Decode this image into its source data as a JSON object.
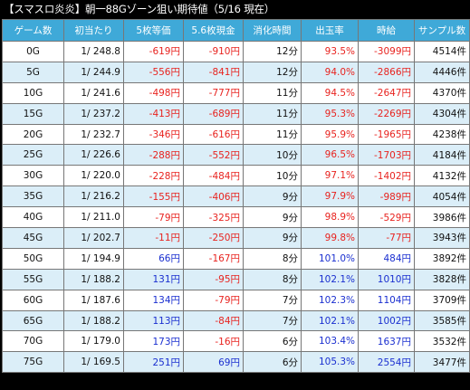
{
  "title": "【スマスロ炎炎】朝一88Gゾーン狙い期待値（5/16 現在）",
  "headers": [
    "ゲーム数",
    "初当たり",
    "5枚等価",
    "5.6枚現金",
    "消化時間",
    "出玉率",
    "時給",
    "サンプル数"
  ],
  "rows": [
    [
      "0G",
      "1/ 248.8",
      "-619円",
      "-910円",
      "12分",
      "93.5%",
      "-3099円",
      "4514件"
    ],
    [
      "5G",
      "1/ 244.9",
      "-556円",
      "-841円",
      "12分",
      "94.0%",
      "-2866円",
      "4446件"
    ],
    [
      "10G",
      "1/ 241.6",
      "-498円",
      "-777円",
      "11分",
      "94.5%",
      "-2647円",
      "4370件"
    ],
    [
      "15G",
      "1/ 237.2",
      "-413円",
      "-689円",
      "11分",
      "95.3%",
      "-2269円",
      "4304件"
    ],
    [
      "20G",
      "1/ 232.7",
      "-346円",
      "-616円",
      "11分",
      "95.9%",
      "-1965円",
      "4238件"
    ],
    [
      "25G",
      "1/ 226.6",
      "-288円",
      "-552円",
      "10分",
      "96.5%",
      "-1703円",
      "4184件"
    ],
    [
      "30G",
      "1/ 220.0",
      "-228円",
      "-484円",
      "10分",
      "97.1%",
      "-1402円",
      "4132件"
    ],
    [
      "35G",
      "1/ 216.2",
      "-155円",
      "-406円",
      "9分",
      "97.9%",
      "-989円",
      "4054件"
    ],
    [
      "40G",
      "1/ 211.0",
      "-79円",
      "-325円",
      "9分",
      "98.9%",
      "-529円",
      "3986件"
    ],
    [
      "45G",
      "1/ 202.7",
      "-11円",
      "-250円",
      "9分",
      "99.8%",
      "-77円",
      "3943件"
    ],
    [
      "50G",
      "1/ 194.9",
      "66円",
      "-167円",
      "8分",
      "101.0%",
      "484円",
      "3892件"
    ],
    [
      "55G",
      "1/ 188.2",
      "131円",
      "-95円",
      "8分",
      "102.1%",
      "1010円",
      "3828件"
    ],
    [
      "60G",
      "1/ 187.6",
      "134円",
      "-79円",
      "7分",
      "102.3%",
      "1104円",
      "3709件"
    ],
    [
      "65G",
      "1/ 188.2",
      "113円",
      "-84円",
      "7分",
      "102.1%",
      "1002円",
      "3585件"
    ],
    [
      "70G",
      "1/ 179.0",
      "173円",
      "-16円",
      "6分",
      "103.4%",
      "1637円",
      "3532件"
    ],
    [
      "75G",
      "1/ 169.5",
      "251円",
      "69円",
      "6分",
      "105.3%",
      "2554円",
      "3477件"
    ]
  ],
  "colors": {
    "header_bg": "#3fa9d8",
    "negative": "#e8231f",
    "positive": "#1a2fd0",
    "row_alt": "#dbeef8"
  }
}
